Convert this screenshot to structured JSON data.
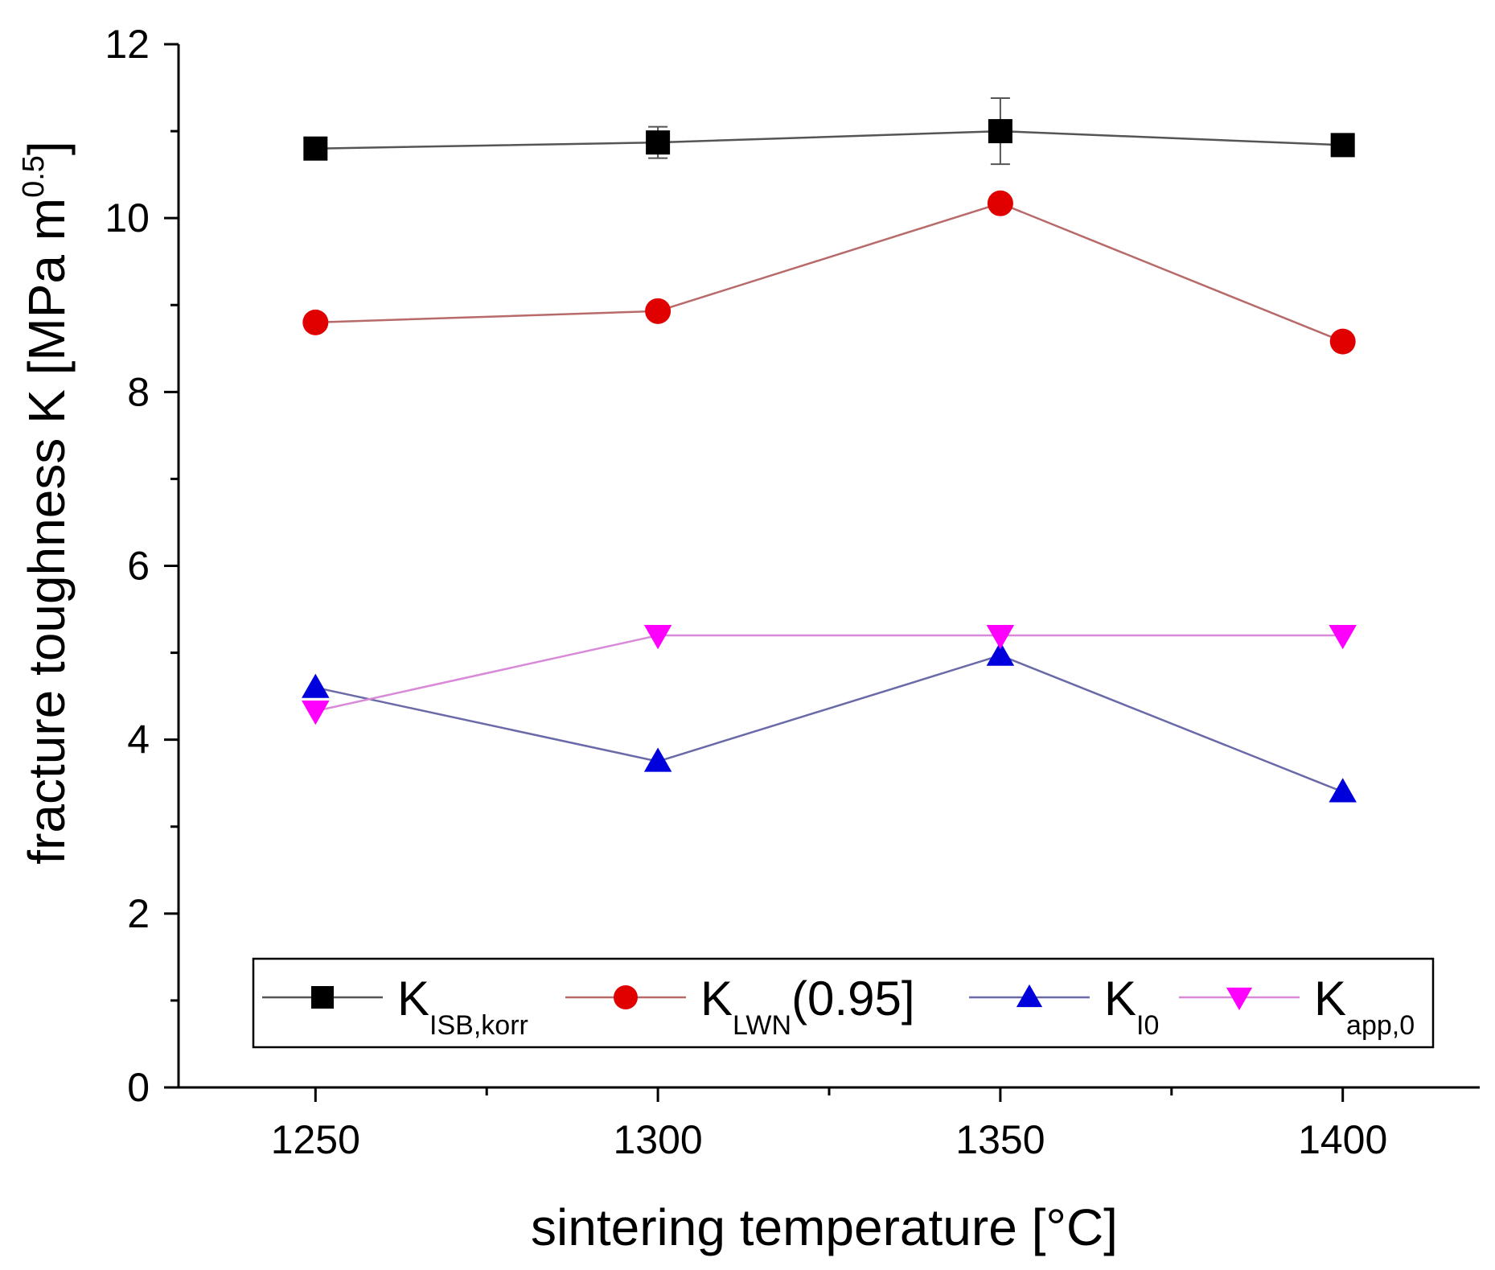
{
  "chart_data": {
    "type": "line",
    "title": "",
    "xlabel": "sintering temperature [°C]",
    "ylabel": {
      "main": "fracture toughness K [MPa m",
      "sup": "0.5",
      "close": "]"
    },
    "xlim": [
      1230,
      1420
    ],
    "ylim": [
      0,
      12
    ],
    "x": [
      1250,
      1300,
      1350,
      1400
    ],
    "x_ticks": [
      1250,
      1300,
      1350,
      1400
    ],
    "x_minor_ticks": [
      1275,
      1325,
      1375
    ],
    "y_ticks": [
      0,
      2,
      4,
      6,
      8,
      10,
      12
    ],
    "y_minor_ticks": [
      1,
      3,
      5,
      7,
      9,
      11
    ],
    "grid": false,
    "legend_position": "bottom",
    "series": [
      {
        "name": "K",
        "sub": "ISB,korr",
        "suffix": "",
        "values": [
          10.8,
          10.87,
          11.0,
          10.84
        ],
        "errors": [
          0.04,
          0.18,
          0.38,
          0.05
        ],
        "marker": "square",
        "color": "#000000",
        "line_color": "#555555"
      },
      {
        "name": "K",
        "sub": "LWN",
        "suffix": "(0.95]",
        "values": [
          8.8,
          8.93,
          10.17,
          8.58
        ],
        "marker": "circle",
        "color": "#e00000",
        "line_color": "#b86a6a"
      },
      {
        "name": "K",
        "sub": "I0",
        "suffix": "",
        "values": [
          4.6,
          3.75,
          4.97,
          3.4
        ],
        "marker": "triangle-up",
        "color": "#0000dd",
        "line_color": "#6a6aa8"
      },
      {
        "name": "K",
        "sub": "app,0",
        "suffix": "",
        "values": [
          4.33,
          5.2,
          5.2,
          5.2
        ],
        "marker": "triangle-down",
        "color": "#ff00ff",
        "line_color": "#d88ad8"
      }
    ]
  }
}
